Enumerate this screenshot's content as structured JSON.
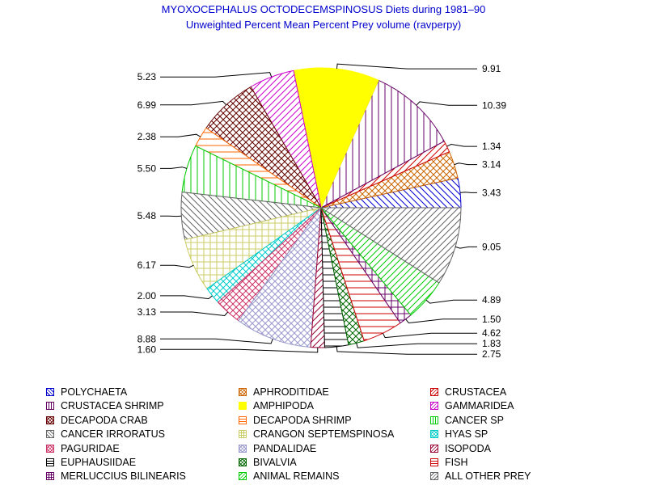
{
  "title": "MYOXOCEPHALUS OCTODECEMSPINOSUS Diets during 1981–90",
  "subtitle": "Unweighted Percent Mean Percent Prey  volume (ravperpy)",
  "chart_data": {
    "type": "pie",
    "title": "MYOXOCEPHALUS OCTODECEMSPINOSUS Diets during 1981–90",
    "subtitle": "Unweighted Percent Mean Percent Prey  volume (ravperpy)",
    "start_angle_deg": 0,
    "direction": "counterclockwise",
    "legend_position": "bottom",
    "slices": [
      {
        "label": "POLYCHAETA",
        "value_label": "3.43",
        "value": 3.43,
        "color": "#0000cc",
        "pattern": "diag-back"
      },
      {
        "label": "APHRODITIDAE",
        "value_label": "3.14",
        "value": 3.14,
        "color": "#cc6600",
        "pattern": "crosshatch"
      },
      {
        "label": "CRUSTACEA",
        "value_label": "1.34",
        "value": 1.34,
        "color": "#cc0000",
        "pattern": "diag"
      },
      {
        "label": "CRUSTACEA SHRIMP",
        "value_label": "10.39",
        "value": 10.39,
        "color": "#660066",
        "pattern": "vertical"
      },
      {
        "label": "AMPHIPODA",
        "value_label": "9.91",
        "value": 9.91,
        "color": "#ffff00",
        "pattern": "solid"
      },
      {
        "label": "GAMMARIDEA",
        "value_label": "5.23",
        "value": 5.23,
        "color": "#cc00cc",
        "pattern": "diag"
      },
      {
        "label": "DECAPODA CRAB",
        "value_label": "6.99",
        "value": 6.99,
        "color": "#660000",
        "pattern": "crosshatch"
      },
      {
        "label": "DECAPODA SHRIMP",
        "value_label": "2.38",
        "value": 2.38,
        "color": "#ff6600",
        "pattern": "horizontal"
      },
      {
        "label": "CANCER SP",
        "value_label": "5.50",
        "value": 5.5,
        "color": "#00cc00",
        "pattern": "vertical"
      },
      {
        "label": "CANCER IRRORATUS",
        "value_label": "5.48",
        "value": 5.48,
        "color": "#666666",
        "pattern": "diag-back"
      },
      {
        "label": "CRANGON SEPTEMSPINOSA",
        "value_label": "6.17",
        "value": 6.17,
        "color": "#cccc66",
        "pattern": "grid"
      },
      {
        "label": "HYAS SP",
        "value_label": "2.00",
        "value": 2.0,
        "color": "#00cccc",
        "pattern": "crosshatch"
      },
      {
        "label": "PAGURIDAE",
        "value_label": "3.13",
        "value": 3.13,
        "color": "#cc3366",
        "pattern": "crosshatch"
      },
      {
        "label": "PANDALIDAE",
        "value_label": "8.88",
        "value": 8.88,
        "color": "#9999cc",
        "pattern": "crosshatch"
      },
      {
        "label": "ISOPODA",
        "value_label": "1.60",
        "value": 1.6,
        "color": "#990033",
        "pattern": "diag"
      },
      {
        "label": "EUPHAUSIIDAE",
        "value_label": "2.75",
        "value": 2.75,
        "color": "#000000",
        "pattern": "horizontal"
      },
      {
        "label": "BIVALVIA",
        "value_label": "1.83",
        "value": 1.83,
        "color": "#006600",
        "pattern": "crosshatch"
      },
      {
        "label": "FISH",
        "value_label": "4.62",
        "value": 4.62,
        "color": "#cc0000",
        "pattern": "horizontal"
      },
      {
        "label": "MERLUCCIUS BILINEARIS",
        "value_label": "1.50",
        "value": 1.5,
        "color": "#660066",
        "pattern": "grid"
      },
      {
        "label": "ANIMAL REMAINS",
        "value_label": "4.89",
        "value": 4.89,
        "color": "#00cc00",
        "pattern": "diag"
      },
      {
        "label": "ALL OTHER PREY",
        "value_label": "9.05",
        "value": 9.05,
        "color": "#666666",
        "pattern": "diag"
      }
    ]
  }
}
